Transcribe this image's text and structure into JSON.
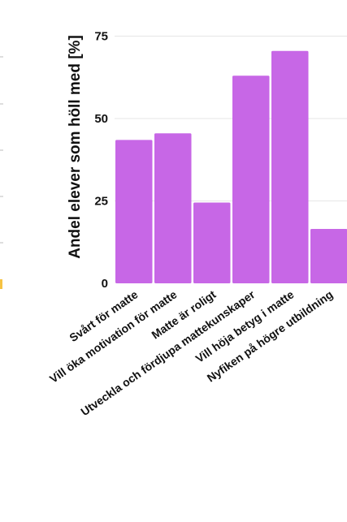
{
  "chart_data": {
    "type": "bar",
    "title": "",
    "xlabel": "",
    "ylabel": "Andel elever som höll med [%]",
    "categories": [
      "Svårt för matte",
      "Vill öka motivation för matte",
      "Matte är roligt",
      "Utveckla och fördjupa mattekunskaper",
      "Vill höja betyg i matte",
      "Nyfiken på högre utbildning"
    ],
    "values": [
      43.5,
      45.5,
      24.5,
      63,
      70.5,
      16.5
    ],
    "ylim": [
      0,
      80
    ],
    "yticks": [
      0,
      25,
      50,
      75
    ],
    "grid": true,
    "legend": "none",
    "colors": {
      "bar": "#c767e6",
      "grid": "#e6e6e6",
      "text": "#111111",
      "accent_fragment": "#f6c343"
    }
  }
}
